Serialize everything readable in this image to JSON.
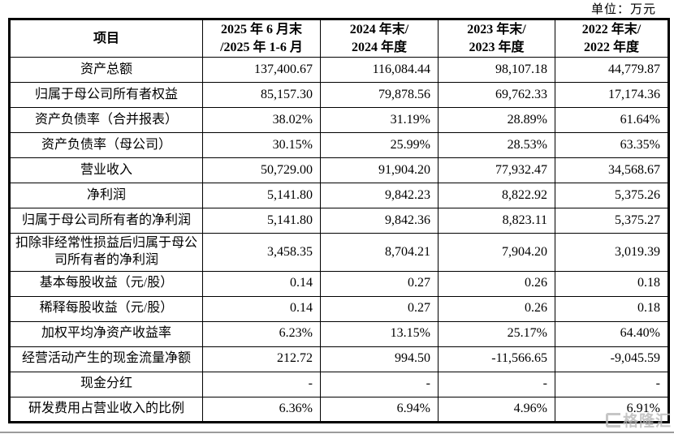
{
  "unit_label": "单位：万元",
  "table": {
    "columns": [
      "项目",
      "2025 年 6 月末\n/2025 年 1-6 月",
      "2024 年末/\n2024 年度",
      "2023 年末/\n2023 年度",
      "2022 年末/\n2022 年度"
    ],
    "rows": [
      {
        "label": "资产总额",
        "values": [
          "137,400.67",
          "116,084.44",
          "98,107.18",
          "44,779.87"
        ]
      },
      {
        "label": "归属于母公司所有者权益",
        "values": [
          "85,157.30",
          "79,878.56",
          "69,762.33",
          "17,174.36"
        ]
      },
      {
        "label": "资产负债率（合并报表）",
        "values": [
          "38.02%",
          "31.19%",
          "28.89%",
          "61.64%"
        ]
      },
      {
        "label": "资产负债率（母公司）",
        "values": [
          "30.15%",
          "25.99%",
          "28.53%",
          "63.35%"
        ]
      },
      {
        "label": "营业收入",
        "values": [
          "50,729.00",
          "91,904.20",
          "77,932.47",
          "34,568.67"
        ]
      },
      {
        "label": "净利润",
        "values": [
          "5,141.80",
          "9,842.23",
          "8,822.92",
          "5,375.26"
        ]
      },
      {
        "label": "归属于母公司所有者的净利润",
        "values": [
          "5,141.80",
          "9,842.36",
          "8,823.11",
          "5,375.27"
        ]
      },
      {
        "label": "扣除非经常性损益后归属于母公司所有者的净利润",
        "values": [
          "3,458.35",
          "8,704.21",
          "7,904.20",
          "3,019.39"
        ]
      },
      {
        "label": "基本每股收益（元/股）",
        "values": [
          "0.14",
          "0.27",
          "0.26",
          "0.18"
        ]
      },
      {
        "label": "稀释每股收益（元/股）",
        "values": [
          "0.14",
          "0.27",
          "0.26",
          "0.18"
        ]
      },
      {
        "label": "加权平均净资产收益率",
        "values": [
          "6.23%",
          "13.15%",
          "25.17%",
          "64.40%"
        ]
      },
      {
        "label": "经营活动产生的现金流量净额",
        "values": [
          "212.72",
          "994.50",
          "-11,566.65",
          "-9,045.59"
        ]
      },
      {
        "label": "现金分红",
        "values": [
          "-",
          "-",
          "-",
          "-"
        ]
      },
      {
        "label": "研发费用占营业收入的比例",
        "values": [
          "6.36%",
          "6.94%",
          "4.96%",
          "6.91%"
        ]
      }
    ]
  },
  "watermark": {
    "text": "格隆汇"
  }
}
